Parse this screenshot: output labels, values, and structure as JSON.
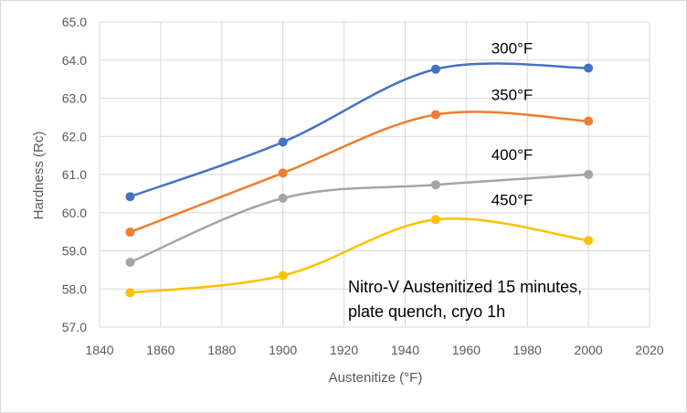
{
  "chart_data": {
    "type": "line",
    "title": "",
    "xlabel": "Austenitize (°F)",
    "ylabel": "Hardness (Rc)",
    "xlim": [
      1840,
      2020
    ],
    "ylim": [
      57.0,
      65.0
    ],
    "x_ticks": [
      1840,
      1860,
      1880,
      1900,
      1920,
      1940,
      1960,
      1980,
      2000,
      2020
    ],
    "y_ticks": [
      57.0,
      58.0,
      59.0,
      60.0,
      61.0,
      62.0,
      63.0,
      64.0,
      65.0
    ],
    "x_tick_labels": [
      "1840",
      "1860",
      "1880",
      "1900",
      "1920",
      "1940",
      "1960",
      "1980",
      "2000",
      "2020"
    ],
    "y_tick_labels": [
      "57.0",
      "58.0",
      "59.0",
      "60.0",
      "61.0",
      "62.0",
      "63.0",
      "64.0",
      "65.0"
    ],
    "grid": true,
    "smooth": true,
    "x": [
      1850,
      1900,
      1950,
      2000
    ],
    "series": [
      {
        "name": "300°F",
        "color": "#4472c4",
        "values": [
          60.42,
          61.85,
          63.76,
          63.79
        ]
      },
      {
        "name": "350°F",
        "color": "#ed7d31",
        "values": [
          59.49,
          61.04,
          62.57,
          62.4
        ]
      },
      {
        "name": "400°F",
        "color": "#a5a5a5",
        "values": [
          58.7,
          60.38,
          60.73,
          61.0
        ]
      },
      {
        "name": "450°F",
        "color": "#ffc000",
        "values": [
          57.9,
          58.35,
          59.82,
          59.27
        ]
      }
    ],
    "annotation_lines": [
      "Nitro-V Austenitized 15 minutes,",
      "plate quench, cryo 1h"
    ]
  }
}
